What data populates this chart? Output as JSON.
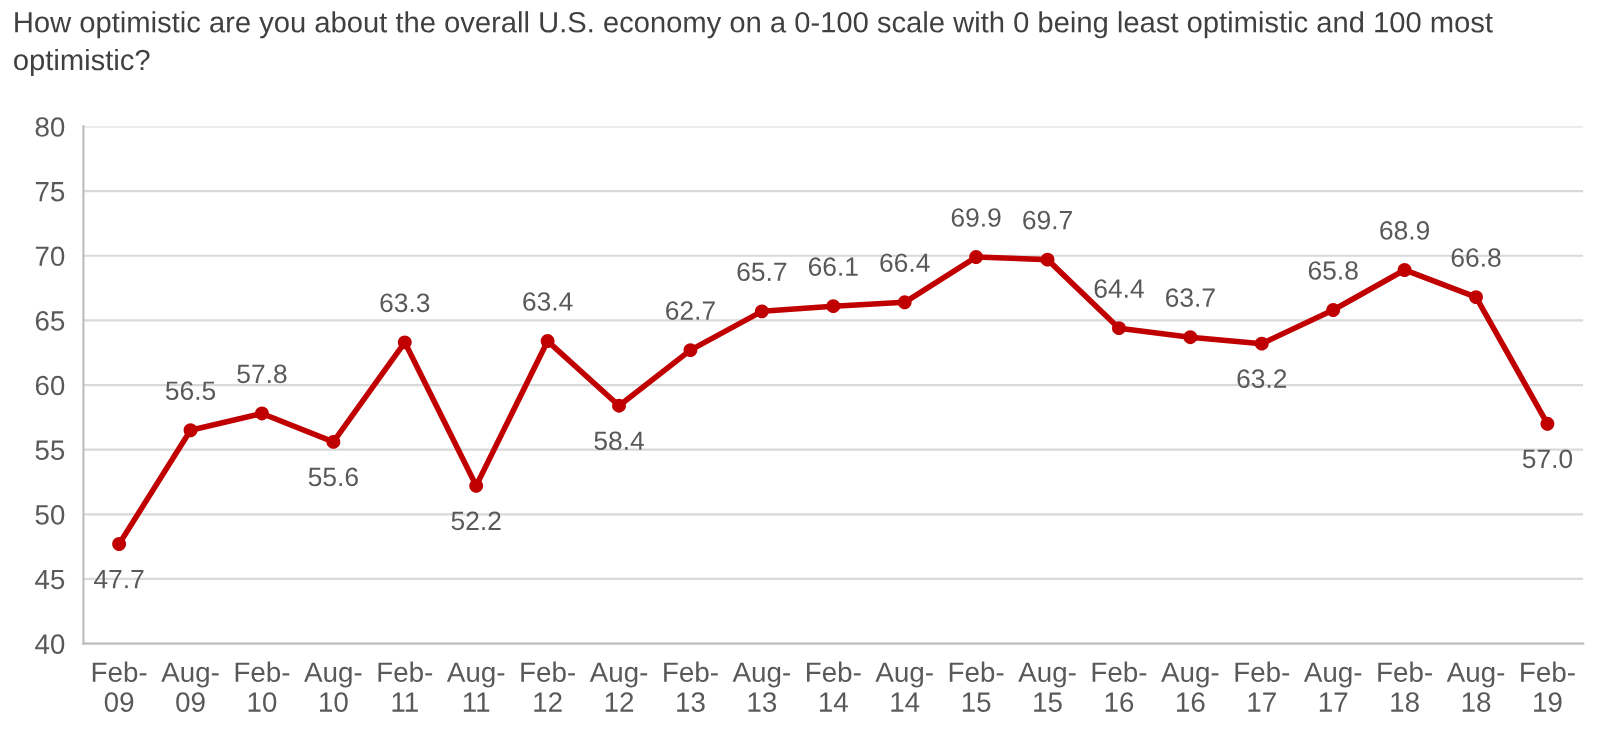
{
  "chart_data": {
    "type": "line",
    "title": "How optimistic are you about the overall U.S. economy on a 0-100 scale with 0 being least optimistic and 100 most optimistic?",
    "categories": [
      "Feb-09",
      "Aug-09",
      "Feb-10",
      "Aug-10",
      "Feb-11",
      "Aug-11",
      "Feb-12",
      "Aug-12",
      "Feb-13",
      "Aug-13",
      "Feb-14",
      "Aug-14",
      "Feb-15",
      "Aug-15",
      "Feb-16",
      "Aug-16",
      "Feb-17",
      "Aug-17",
      "Feb-18",
      "Aug-18",
      "Feb-19"
    ],
    "series": [
      {
        "color": "#c00000",
        "values": [
          47.7,
          56.5,
          57.8,
          55.6,
          63.3,
          52.2,
          63.4,
          58.4,
          62.7,
          65.7,
          66.1,
          66.4,
          69.9,
          69.7,
          64.4,
          63.7,
          63.2,
          65.8,
          68.9,
          66.8,
          57.0
        ],
        "value_labels": [
          "47.7",
          "56.5",
          "57.8",
          "55.6",
          "63.3",
          "52.2",
          "63.4",
          "58.4",
          "62.7",
          "65.7",
          "66.1",
          "66.4",
          "69.9",
          "69.7",
          "64.4",
          "63.7",
          "63.2",
          "65.8",
          "68.9",
          "66.8",
          "57.0"
        ]
      }
    ],
    "ylim": [
      40,
      80
    ],
    "yticks": [
      40,
      45,
      50,
      55,
      60,
      65,
      70,
      75,
      80
    ],
    "grid": "y",
    "marker": "circle",
    "line_style": "solid",
    "legend": false
  }
}
